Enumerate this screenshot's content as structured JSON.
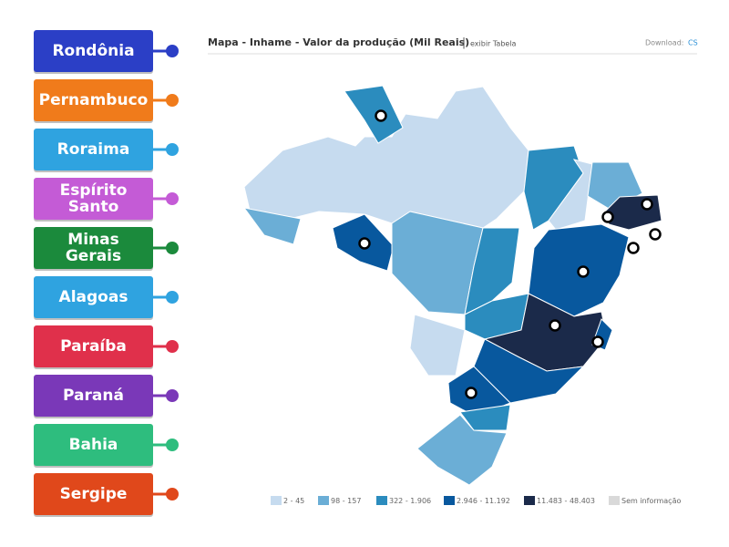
{
  "game": {
    "labels": [
      {
        "text": "Rondônia",
        "color": "#2b3fc6"
      },
      {
        "text": "Pernambuco",
        "color": "#f07b1b"
      },
      {
        "text": "Roraima",
        "color": "#2fa3e0"
      },
      {
        "text": "Espírito Santo",
        "color": "#c45bd6"
      },
      {
        "text": "Minas Gerais",
        "color": "#1b8a3c"
      },
      {
        "text": "Alagoas",
        "color": "#2fa3e0"
      },
      {
        "text": "Paraíba",
        "color": "#e0304b"
      },
      {
        "text": "Paraná",
        "color": "#7a38b8"
      },
      {
        "text": "Bahia",
        "color": "#2ebd7e"
      },
      {
        "text": "Sergipe",
        "color": "#e0481b"
      }
    ],
    "map": {
      "title": "Mapa - Inhame - Valor da produção (Mil Reais)",
      "separator": "|",
      "table_link": "exibir Tabela",
      "download": "Download:",
      "download_link": "CS",
      "legend": [
        {
          "label": "2 - 45",
          "color": "#c6dbef"
        },
        {
          "label": "98 - 157",
          "color": "#6baed6"
        },
        {
          "label": "322 - 1.906",
          "color": "#2b8cbe"
        },
        {
          "label": "2.946 - 11.192",
          "color": "#08589e"
        },
        {
          "label": "11.483 - 48.403",
          "color": "#1b2a4a"
        },
        {
          "label": "Sem informação",
          "color": "#d9d9d9"
        }
      ]
    }
  }
}
